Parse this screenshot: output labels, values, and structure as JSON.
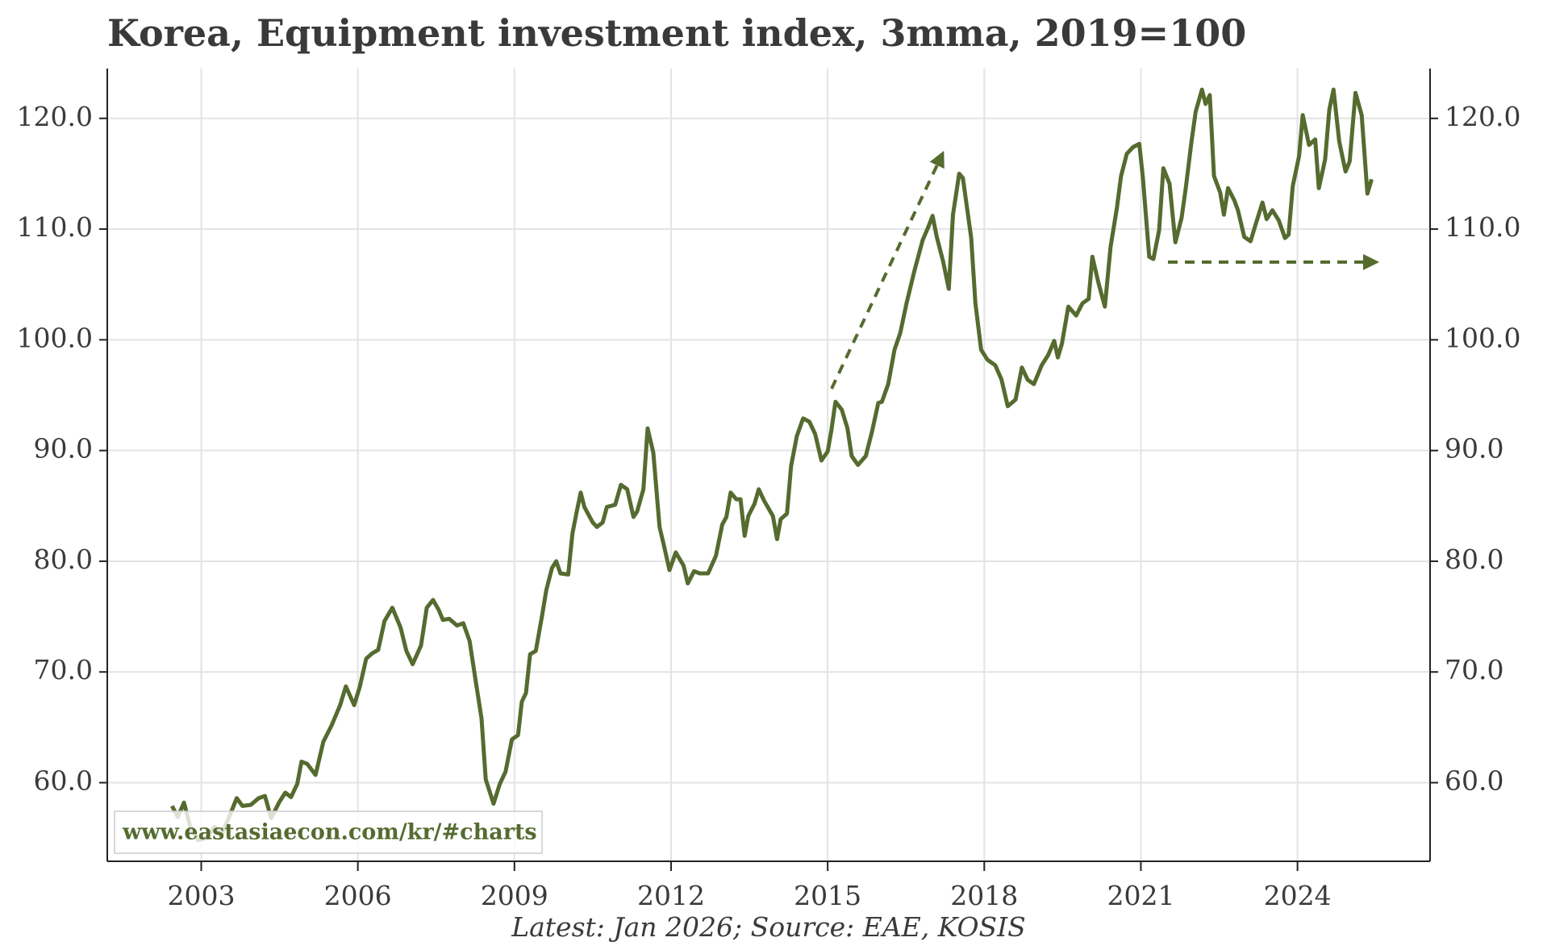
{
  "chart_data": {
    "type": "line",
    "title": "Korea, Equipment investment index, 3mma, 2019=100",
    "footer": "Latest: Jan 2026; Source: EAE, KOSIS",
    "watermark": "www.eastasiaecon.com/kr/#charts",
    "xlim": [
      2001.2,
      2026.54
    ],
    "ylim": [
      52.9,
      124.5
    ],
    "xticks": [
      2003,
      2006,
      2009,
      2012,
      2015,
      2018,
      2021,
      2024
    ],
    "yticks": [
      {
        "value": 60,
        "label": "60.0"
      },
      {
        "value": 70,
        "label": "70.0"
      },
      {
        "value": 80,
        "label": "80.0"
      },
      {
        "value": 90,
        "label": "90.0"
      },
      {
        "value": 100,
        "label": "100.0"
      },
      {
        "value": 110,
        "label": "110.0"
      },
      {
        "value": 120,
        "label": "120.0"
      }
    ],
    "grid": true,
    "x": [
      2002.44,
      2002.55,
      2002.67,
      2002.79,
      2002.94,
      2003.1,
      2003.25,
      2003.41,
      2003.56,
      2003.68,
      2003.79,
      2003.95,
      2004.1,
      2004.22,
      2004.34,
      2004.49,
      2004.61,
      2004.72,
      2004.84,
      2004.92,
      2005.03,
      2005.19,
      2005.34,
      2005.5,
      2005.66,
      2005.77,
      2005.93,
      2006.04,
      2006.16,
      2006.28,
      2006.39,
      2006.51,
      2006.66,
      2006.82,
      2006.93,
      2007.05,
      2007.21,
      2007.32,
      2007.44,
      2007.55,
      2007.63,
      2007.75,
      2007.9,
      2008.02,
      2008.14,
      2008.25,
      2008.37,
      2008.45,
      2008.6,
      2008.72,
      2008.83,
      2008.95,
      2009.07,
      2009.14,
      2009.22,
      2009.3,
      2009.41,
      2009.53,
      2009.61,
      2009.72,
      2009.8,
      2009.88,
      2010.03,
      2010.11,
      2010.19,
      2010.27,
      2010.34,
      2010.5,
      2010.58,
      2010.69,
      2010.77,
      2010.93,
      2011.04,
      2011.16,
      2011.28,
      2011.35,
      2011.47,
      2011.55,
      2011.66,
      2011.78,
      2011.86,
      2011.97,
      2012.09,
      2012.24,
      2012.32,
      2012.44,
      2012.55,
      2012.71,
      2012.86,
      2012.98,
      2013.06,
      2013.14,
      2013.25,
      2013.33,
      2013.41,
      2013.48,
      2013.6,
      2013.68,
      2013.79,
      2013.95,
      2014.03,
      2014.1,
      2014.22,
      2014.3,
      2014.41,
      2014.53,
      2014.65,
      2014.76,
      2014.88,
      2015.0,
      2015.07,
      2015.15,
      2015.27,
      2015.38,
      2015.46,
      2015.58,
      2015.73,
      2015.85,
      2015.97,
      2016.04,
      2016.16,
      2016.28,
      2016.39,
      2016.51,
      2016.66,
      2016.82,
      2016.93,
      2017.01,
      2017.09,
      2017.21,
      2017.32,
      2017.4,
      2017.52,
      2017.59,
      2017.75,
      2017.83,
      2017.94,
      2018.06,
      2018.21,
      2018.33,
      2018.45,
      2018.6,
      2018.72,
      2018.83,
      2018.95,
      2019.1,
      2019.22,
      2019.34,
      2019.41,
      2019.49,
      2019.61,
      2019.76,
      2019.88,
      2020.0,
      2020.07,
      2020.19,
      2020.31,
      2020.42,
      2020.54,
      2020.62,
      2020.73,
      2020.85,
      2020.97,
      2021.04,
      2021.16,
      2021.24,
      2021.35,
      2021.43,
      2021.55,
      2021.66,
      2021.78,
      2021.86,
      2021.97,
      2022.05,
      2022.17,
      2022.24,
      2022.32,
      2022.4,
      2022.52,
      2022.59,
      2022.67,
      2022.79,
      2022.86,
      2022.98,
      2023.1,
      2023.21,
      2023.33,
      2023.41,
      2023.52,
      2023.64,
      2023.76,
      2023.83,
      2023.91,
      2024.03,
      2024.1,
      2024.22,
      2024.34,
      2024.41,
      2024.53,
      2024.61,
      2024.69,
      2024.8,
      2024.92,
      2025.0,
      2025.11,
      2025.23,
      2025.34,
      2025.42
    ],
    "series": [
      {
        "name": "Equipment investment index",
        "color": "#556b2f",
        "values": [
          57.9,
          56.9,
          58.2,
          56.0,
          54.8,
          55.0,
          56.0,
          55.5,
          57.2,
          58.6,
          57.9,
          58.0,
          58.6,
          58.8,
          56.8,
          58.2,
          59.1,
          58.7,
          59.9,
          61.9,
          61.7,
          60.7,
          63.7,
          65.2,
          67.0,
          68.7,
          67.0,
          68.7,
          71.2,
          71.7,
          72.0,
          74.6,
          75.8,
          74.0,
          71.9,
          70.7,
          72.4,
          75.8,
          76.5,
          75.6,
          74.7,
          74.8,
          74.2,
          74.4,
          72.8,
          69.4,
          65.8,
          60.3,
          58.1,
          59.9,
          61.0,
          63.9,
          64.3,
          67.3,
          68.1,
          71.6,
          71.9,
          75.1,
          77.4,
          79.4,
          80.0,
          78.9,
          78.8,
          82.5,
          84.4,
          86.2,
          84.9,
          83.5,
          83.1,
          83.5,
          84.9,
          85.1,
          86.9,
          86.5,
          84.0,
          84.5,
          86.5,
          92.0,
          89.8,
          83.1,
          81.5,
          79.2,
          80.8,
          79.6,
          78.0,
          79.1,
          78.9,
          78.9,
          80.5,
          83.3,
          84.0,
          86.2,
          85.6,
          85.6,
          82.3,
          84.1,
          85.2,
          86.5,
          85.4,
          84.1,
          82.0,
          83.8,
          84.3,
          88.6,
          91.3,
          92.9,
          92.6,
          91.5,
          89.1,
          89.9,
          91.8,
          94.4,
          93.7,
          92.0,
          89.5,
          88.7,
          89.5,
          91.7,
          94.3,
          94.4,
          96.0,
          99.1,
          100.6,
          103.3,
          106.2,
          109.0,
          110.2,
          111.2,
          109.3,
          107.1,
          104.6,
          111.3,
          115.0,
          114.6,
          109.2,
          103.3,
          99.1,
          98.2,
          97.7,
          96.4,
          94.0,
          94.6,
          97.5,
          96.4,
          96.0,
          97.7,
          98.6,
          99.9,
          98.4,
          99.7,
          103.0,
          102.2,
          103.3,
          103.7,
          107.5,
          105.1,
          103.0,
          108.4,
          111.9,
          114.8,
          116.8,
          117.4,
          117.7,
          114.6,
          107.5,
          107.3,
          109.9,
          115.5,
          114.1,
          108.8,
          111.0,
          113.7,
          117.9,
          120.6,
          122.6,
          121.3,
          122.1,
          114.8,
          113.3,
          111.3,
          113.7,
          112.6,
          111.7,
          109.3,
          108.9,
          110.6,
          112.4,
          110.9,
          111.7,
          110.8,
          109.2,
          109.5,
          113.9,
          116.6,
          120.3,
          117.6,
          118.1,
          113.7,
          116.3,
          120.8,
          122.6,
          117.9,
          115.2,
          116.1,
          122.3,
          120.3,
          113.2,
          114.5
        ]
      }
    ]
  }
}
